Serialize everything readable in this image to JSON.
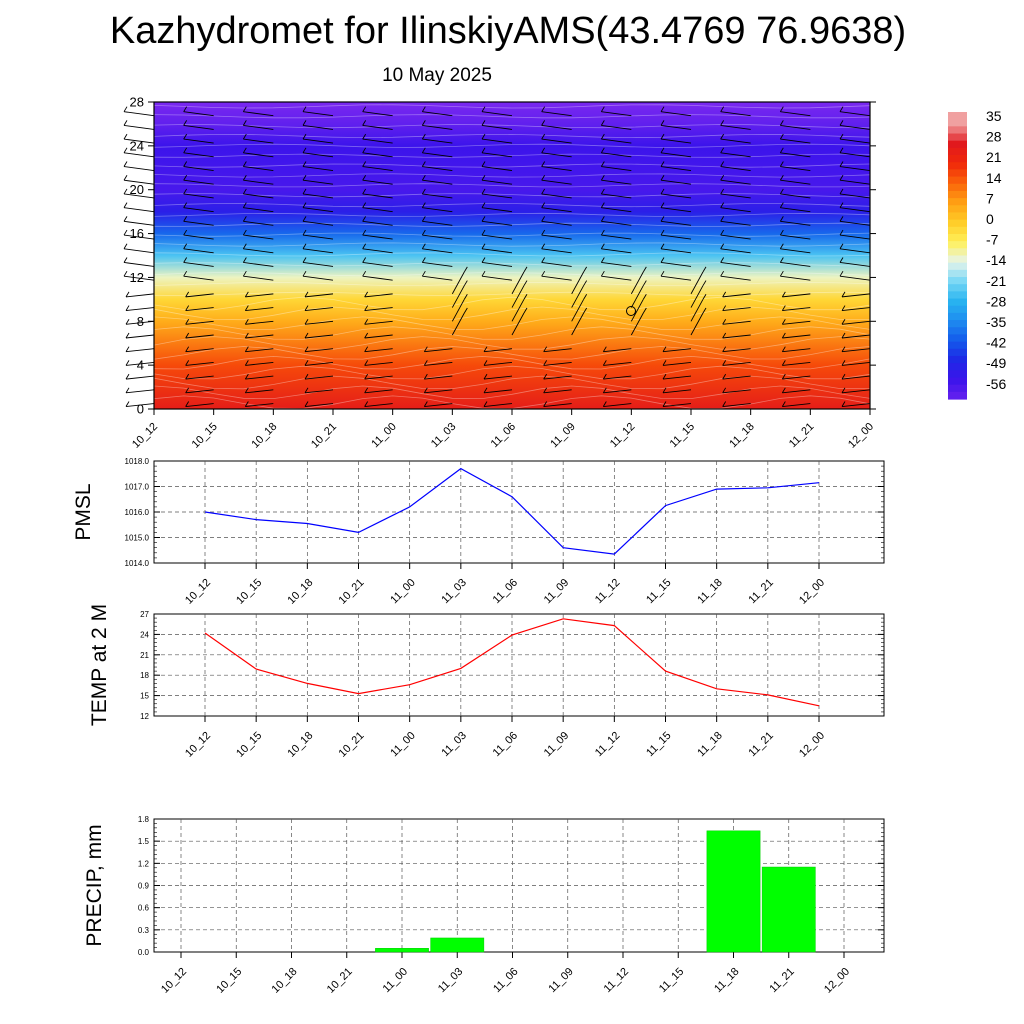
{
  "title": "Kazhydromet for IlinskiyAMS(43.4769 76.9638)",
  "subtitle": "10 May 2025",
  "time_labels": [
    "10_12",
    "10_15",
    "10_18",
    "10_21",
    "11_00",
    "11_03",
    "11_06",
    "11_09",
    "11_12",
    "11_15",
    "11_18",
    "11_21",
    "12_00"
  ],
  "chart_data": [
    {
      "type": "heatmap",
      "title": "",
      "ylabel": "",
      "ylim": [
        0,
        28
      ],
      "yticks": [
        0,
        4,
        8,
        12,
        16,
        20,
        24,
        28
      ],
      "colorbar": {
        "labels": [
          "35",
          "28",
          "21",
          "14",
          "7",
          "0",
          "-7",
          "-14",
          "-21",
          "-28",
          "-35",
          "-42",
          "-49",
          "-56"
        ],
        "low_color": "#7a2af0",
        "high_color": "#f0a0a0"
      },
      "temperature_profile": [
        {
          "level": 0,
          "value": 26
        },
        {
          "level": 4,
          "value": 17
        },
        {
          "level": 8,
          "value": 5
        },
        {
          "level": 10,
          "value": -2
        },
        {
          "level": 12,
          "value": -12
        },
        {
          "level": 14,
          "value": -25
        },
        {
          "level": 16,
          "value": -40
        },
        {
          "level": 18,
          "value": -52
        },
        {
          "level": 20,
          "value": -58
        },
        {
          "level": 22,
          "value": -57
        },
        {
          "level": 24,
          "value": -56
        },
        {
          "level": 26,
          "value": -62
        },
        {
          "level": 28,
          "value": -66
        }
      ]
    },
    {
      "type": "line",
      "ylabel": "PMSL",
      "ylim": [
        1014.0,
        1018.0
      ],
      "yticks": [
        "1014.0",
        "1015.0",
        "1016.0",
        "1017.0",
        "1018.0"
      ],
      "series": [
        {
          "color": "#0000ff",
          "values": [
            1016.0,
            1015.7,
            1015.55,
            1015.2,
            1016.2,
            1017.7,
            1016.6,
            1014.6,
            1014.35,
            1016.25,
            1016.9,
            1016.95,
            1017.15
          ]
        }
      ]
    },
    {
      "type": "line",
      "ylabel": "TEMP at 2 M",
      "ylim": [
        12,
        27
      ],
      "yticks": [
        "12",
        "15",
        "18",
        "21",
        "24",
        "27"
      ],
      "series": [
        {
          "color": "#ff0000",
          "values": [
            24.2,
            18.9,
            16.8,
            15.3,
            16.6,
            19.0,
            23.9,
            26.3,
            25.3,
            18.6,
            16.0,
            15.1,
            13.5
          ]
        }
      ]
    },
    {
      "type": "bar",
      "ylabel": "PRECIP, mm",
      "ylim": [
        0,
        1.8
      ],
      "yticks": [
        "0.0",
        "0.3",
        "0.6",
        "0.9",
        "1.2",
        "1.5",
        "1.8"
      ],
      "color": "#00ff00",
      "values": [
        0,
        0,
        0,
        0,
        0.05,
        0.19,
        0,
        0,
        0,
        0,
        1.64,
        1.15,
        0
      ]
    }
  ]
}
